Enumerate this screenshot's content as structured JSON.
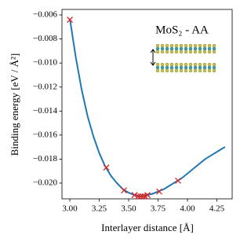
{
  "chart_data": {
    "type": "line",
    "annotation": "MoS₂ - AA",
    "xlabel": "Interlayer distance [Å]",
    "ylabel": "Binding energy [eV / Å²]",
    "xlim": [
      2.933,
      4.38
    ],
    "ylim": [
      -0.02131,
      -0.00554
    ],
    "xticks": [
      {
        "value": 3.0,
        "label": "3.00"
      },
      {
        "value": 3.25,
        "label": "3.25"
      },
      {
        "value": 3.5,
        "label": "3.50"
      },
      {
        "value": 3.75,
        "label": "3.75"
      },
      {
        "value": 4.0,
        "label": "4.00"
      },
      {
        "value": 4.25,
        "label": "4.25"
      }
    ],
    "yticks": [
      {
        "value": -0.006,
        "label": "−0.006"
      },
      {
        "value": -0.008,
        "label": "−0.008"
      },
      {
        "value": -0.01,
        "label": "−0.010"
      },
      {
        "value": -0.012,
        "label": "−0.012"
      },
      {
        "value": -0.014,
        "label": "−0.014"
      },
      {
        "value": -0.016,
        "label": "−0.016"
      },
      {
        "value": -0.018,
        "label": "−0.018"
      },
      {
        "value": -0.02,
        "label": "−0.020"
      }
    ],
    "series": [
      {
        "style": "line",
        "color": "#1f77b4",
        "x": [
          3.0,
          3.05,
          3.1,
          3.15,
          3.2,
          3.25,
          3.3,
          3.35,
          3.4,
          3.45,
          3.5,
          3.55,
          3.6,
          3.65,
          3.7,
          3.75,
          3.8,
          3.85,
          3.9,
          3.95,
          4.0,
          4.05,
          4.1,
          4.15,
          4.2,
          4.25,
          4.3,
          4.32
        ],
        "values": [
          -0.0063,
          -0.0095,
          -0.0122,
          -0.0144,
          -0.0161,
          -0.0175,
          -0.0186,
          -0.0194,
          -0.02,
          -0.0205,
          -0.0208,
          -0.021,
          -0.0211,
          -0.021,
          -0.0209,
          -0.0207,
          -0.0205,
          -0.0202,
          -0.0199,
          -0.0196,
          -0.0192,
          -0.0188,
          -0.0184,
          -0.018,
          -0.0177,
          -0.0174,
          -0.0171,
          -0.017
        ]
      },
      {
        "style": "markers",
        "color": "#d62728",
        "x": [
          3.0,
          3.31,
          3.46,
          3.55,
          3.58,
          3.6,
          3.62,
          3.64,
          3.66,
          3.76,
          3.92
        ],
        "values": [
          -0.0064,
          -0.0187,
          -0.0206,
          -0.021,
          -0.0211,
          -0.0211,
          -0.0211,
          -0.0211,
          -0.021,
          -0.0207,
          -0.0198
        ]
      }
    ]
  }
}
